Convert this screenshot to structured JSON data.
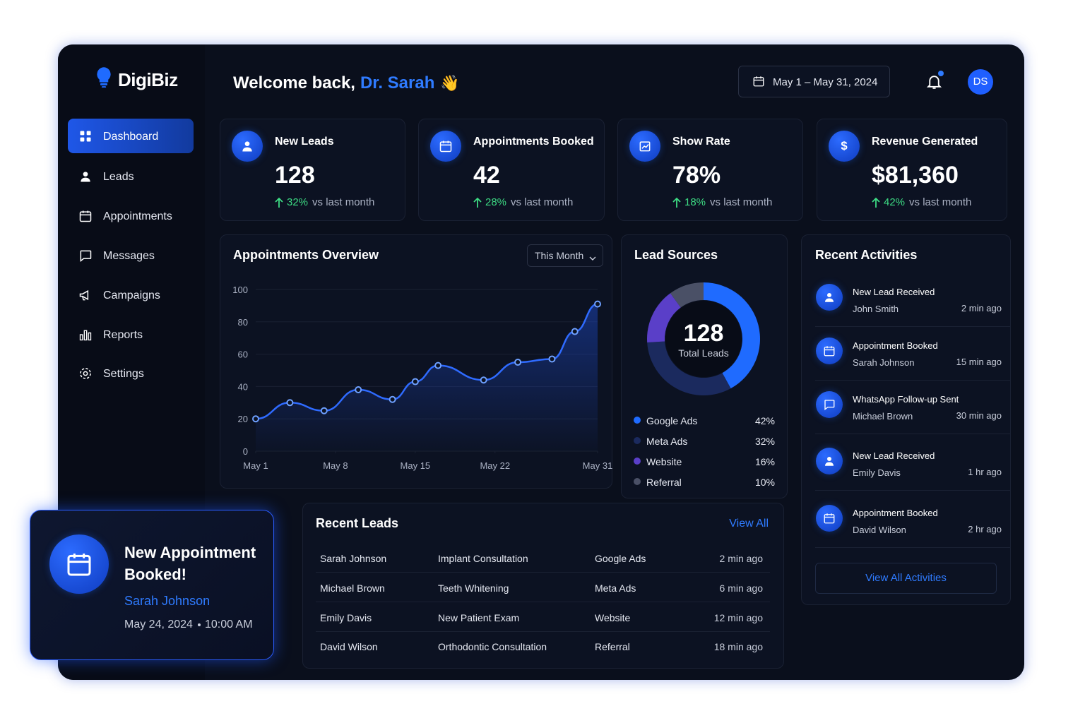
{
  "brand": {
    "name": "DigiBiz"
  },
  "header": {
    "greeting": "Welcome back,",
    "user": "Dr. Sarah",
    "emoji": "👋",
    "date_range": "May 1 – May 31, 2024",
    "avatar": "DS"
  },
  "nav": [
    "Dashboard",
    "Leads",
    "Appointments",
    "Messages",
    "Campaigns",
    "Reports",
    "Settings"
  ],
  "kpis": [
    {
      "title": "New Leads",
      "value": "128",
      "change": "32%",
      "note": "vs last month"
    },
    {
      "title": "Appointments Booked",
      "value": "42",
      "change": "28%",
      "note": "vs last month"
    },
    {
      "title": "Show Rate",
      "value": "78%",
      "change": "18%",
      "note": "vs last month"
    },
    {
      "title": "Revenue Generated",
      "value": "$81,360",
      "change": "42%",
      "note": "vs last month"
    }
  ],
  "chart_data": [
    {
      "type": "line",
      "title": "Appointments Overview",
      "filter": "This Month",
      "x": [
        1,
        4,
        7,
        10,
        13,
        15,
        17,
        21,
        24,
        27,
        29,
        31
      ],
      "values": [
        20,
        30,
        25,
        38,
        32,
        43,
        53,
        44,
        55,
        57,
        74,
        91
      ],
      "color": "#2f6bff",
      "xlim": [
        1,
        31
      ],
      "xticks": [
        {
          "value": 1,
          "label": "May 1"
        },
        {
          "value": 8,
          "label": "May 8"
        },
        {
          "value": 15,
          "label": "May 15"
        },
        {
          "value": 22,
          "label": "May 22"
        },
        {
          "value": 31,
          "label": "May 31"
        }
      ],
      "ylim": [
        0,
        100
      ],
      "yticks": [
        0,
        20,
        40,
        60,
        80,
        100
      ],
      "grid": true
    },
    {
      "type": "pie",
      "title": "Lead Sources",
      "center_value": "128",
      "center_label": "Total Leads",
      "categories": [
        "Google Ads",
        "Meta Ads",
        "Website",
        "Referral"
      ],
      "values": [
        42,
        32,
        16,
        10
      ],
      "value_labels": [
        "42%",
        "32%",
        "16%",
        "10%"
      ],
      "colors": [
        "#1f6bff",
        "#1b2a5e",
        "#5a3fc8",
        "#4a5066"
      ]
    }
  ],
  "recent_activities": {
    "title": "Recent Activities",
    "items": [
      {
        "title": "New Lead Received",
        "name": "John Smith",
        "time": "2 min ago"
      },
      {
        "title": "Appointment Booked",
        "name": "Sarah Johnson",
        "time": "15 min ago"
      },
      {
        "title": "WhatsApp Follow-up Sent",
        "name": "Michael Brown",
        "time": "30 min ago"
      },
      {
        "title": "New Lead Received",
        "name": "Emily Davis",
        "time": "1 hr ago"
      },
      {
        "title": "Appointment Booked",
        "name": "David Wilson",
        "time": "2 hr ago"
      }
    ],
    "button": "View All Activities"
  },
  "recent_leads": {
    "title": "Recent Leads",
    "link": "View All",
    "rows": [
      [
        "Sarah Johnson",
        "Implant Consultation",
        "Google Ads",
        "2 min ago"
      ],
      [
        "Michael Brown",
        "Teeth Whitening",
        "Meta Ads",
        "6 min ago"
      ],
      [
        "Emily Davis",
        "New Patient Exam",
        "Website",
        "12 min ago"
      ],
      [
        "David Wilson",
        "Orthodontic Consultation",
        "Referral",
        "18 min ago"
      ]
    ]
  },
  "notification": {
    "title": "New Appointment Booked!",
    "name": "Sarah Johnson",
    "date": "May 24, 2024",
    "time": "10:00 AM"
  }
}
